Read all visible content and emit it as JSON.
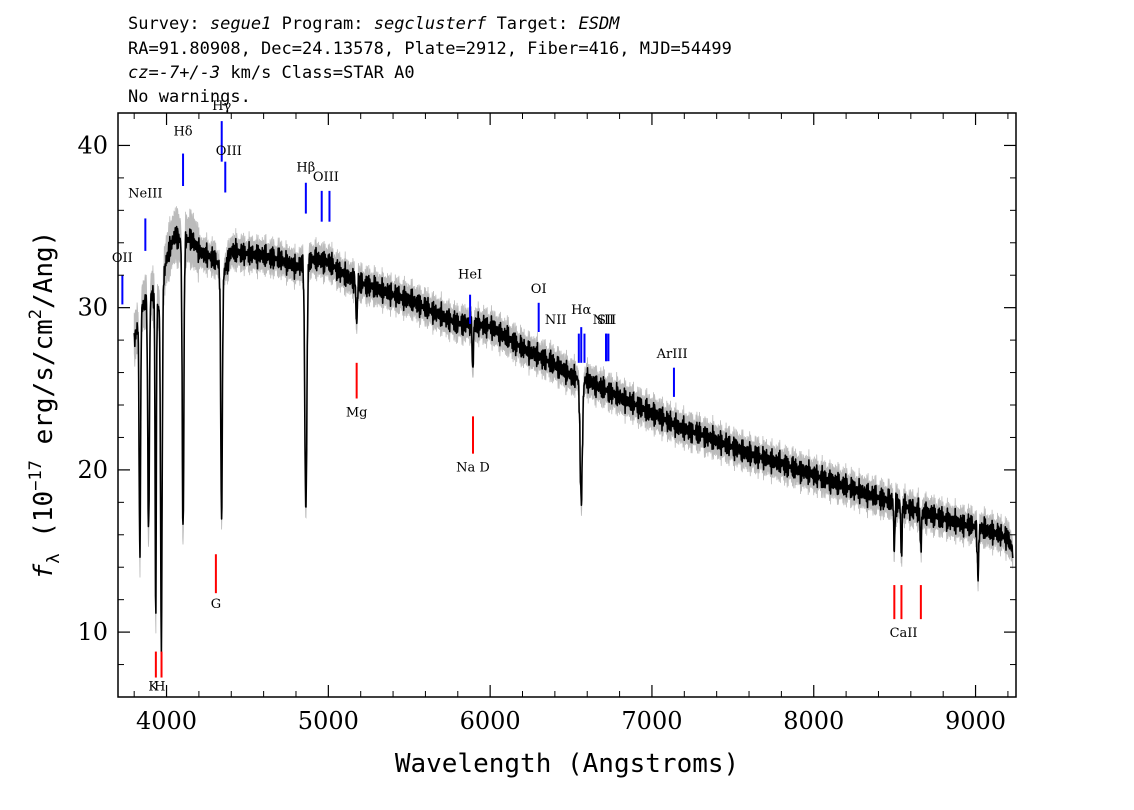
{
  "header": {
    "survey_label": "Survey:",
    "survey": "segue1",
    "program_label": "Program:",
    "program": "segclusterf",
    "target_label": "Target:",
    "target": "ESDM",
    "line2": "RA=91.80908, Dec=24.13578, Plate=2912, Fiber=416, MJD=54499",
    "cz_label": "cz",
    "cz_value": "=-7+/-3",
    "cz_rest": " km/s Class=STAR A0",
    "line4": "No warnings."
  },
  "chart_data": {
    "type": "line",
    "title": "",
    "xlabel": "Wavelength (Angstroms)",
    "ylabel_parts": {
      "f": "f",
      "sub": "λ",
      "pre": " (10",
      "exp": "−17",
      "mid": " erg/s/cm",
      "exp2": "2",
      "post": "/Ang)"
    },
    "xlim": [
      3700,
      9250
    ],
    "ylim": [
      6,
      42
    ],
    "xticks": [
      4000,
      5000,
      6000,
      7000,
      8000,
      9000
    ],
    "yticks": [
      10,
      20,
      30,
      40
    ],
    "colors": {
      "spectrum": "#000000",
      "error": "#bbbbbb",
      "emission": "#0000ff",
      "absorption": "#ff0000"
    },
    "spectrum_continuum": [
      [
        3800,
        28
      ],
      [
        3850,
        30
      ],
      [
        3900,
        31
      ],
      [
        3950,
        30
      ],
      [
        4000,
        33
      ],
      [
        4050,
        34.5
      ],
      [
        4100,
        34
      ],
      [
        4150,
        34.3
      ],
      [
        4200,
        33.5
      ],
      [
        4250,
        33.2
      ],
      [
        4300,
        33
      ],
      [
        4350,
        32
      ],
      [
        4400,
        33.5
      ],
      [
        4500,
        33.3
      ],
      [
        4600,
        33.2
      ],
      [
        4700,
        33
      ],
      [
        4800,
        32.5
      ],
      [
        4900,
        33
      ],
      [
        5000,
        32.8
      ],
      [
        5100,
        32
      ],
      [
        5200,
        31.5
      ],
      [
        5300,
        31.2
      ],
      [
        5400,
        30.8
      ],
      [
        5500,
        30.5
      ],
      [
        5600,
        30
      ],
      [
        5700,
        29.5
      ],
      [
        5800,
        29
      ],
      [
        5900,
        29
      ],
      [
        6000,
        28.8
      ],
      [
        6100,
        28.2
      ],
      [
        6200,
        27.5
      ],
      [
        6300,
        27
      ],
      [
        6400,
        26.5
      ],
      [
        6500,
        25.8
      ],
      [
        6600,
        25.5
      ],
      [
        6700,
        25
      ],
      [
        6800,
        24.5
      ],
      [
        6900,
        24
      ],
      [
        7000,
        23.5
      ],
      [
        7100,
        23
      ],
      [
        7200,
        22.5
      ],
      [
        7300,
        22.2
      ],
      [
        7400,
        21.8
      ],
      [
        7500,
        21.4
      ],
      [
        7600,
        21
      ],
      [
        7700,
        20.7
      ],
      [
        7800,
        20.4
      ],
      [
        7900,
        20
      ],
      [
        8000,
        19.7
      ],
      [
        8100,
        19.3
      ],
      [
        8200,
        19
      ],
      [
        8300,
        18.6
      ],
      [
        8400,
        18.3
      ],
      [
        8500,
        18
      ],
      [
        8600,
        17.6
      ],
      [
        8700,
        17.3
      ],
      [
        8800,
        17
      ],
      [
        8900,
        16.7
      ],
      [
        9000,
        16.5
      ],
      [
        9100,
        16.2
      ],
      [
        9200,
        15.8
      ],
      [
        9230,
        15
      ]
    ],
    "absorption_features": [
      [
        3835,
        14.5,
        6
      ],
      [
        3889,
        16,
        7
      ],
      [
        3933,
        11,
        5
      ],
      [
        3968,
        9.5,
        7
      ],
      [
        4102,
        16,
        7
      ],
      [
        4340,
        17,
        7
      ],
      [
        4861,
        17.5,
        9
      ],
      [
        5175,
        29,
        6
      ],
      [
        5893,
        26,
        5
      ],
      [
        6563,
        18,
        10
      ],
      [
        8498,
        15,
        5
      ],
      [
        8542,
        14.5,
        5
      ],
      [
        8662,
        15,
        5
      ],
      [
        9015,
        13.5,
        6
      ]
    ],
    "emission_lines": [
      {
        "name": "OII",
        "wl": 3727,
        "ymin": 30.2,
        "ymax": 32.0,
        "lx": 3727,
        "ly": 32.8
      },
      {
        "name": "NeIII",
        "wl": 3869,
        "ymin": 33.5,
        "ymax": 35.5,
        "lx": 3869,
        "ly": 36.8
      },
      {
        "name": "Hδ",
        "wl": 4102,
        "ymin": 37.5,
        "ymax": 39.5,
        "lx": 4102,
        "ly": 40.6
      },
      {
        "name": "Hγ",
        "wl": 4341,
        "ymin": 39.0,
        "ymax": 41.5,
        "lx": 4341,
        "ly": 42.2
      },
      {
        "name": "OIII",
        "wl": 4363,
        "ymin": 37.1,
        "ymax": 39.0,
        "lx": 4385,
        "ly": 39.4
      },
      {
        "name": "Hβ",
        "wl": 4861,
        "ymin": 35.8,
        "ymax": 37.7,
        "lx": 4861,
        "ly": 38.4
      },
      {
        "name": "OIII",
        "wl": 4959,
        "ymin": 35.3,
        "ymax": 37.2,
        "lx": 4985,
        "ly": 37.8
      },
      {
        "name": "OIII",
        "wl": 5007,
        "ymin": 35.3,
        "ymax": 37.2,
        "lx": "",
        "ly": ""
      },
      {
        "name": "HeI",
        "wl": 5876,
        "ymin": 29.0,
        "ymax": 30.8,
        "lx": 5876,
        "ly": 31.8
      },
      {
        "name": "OI",
        "wl": 6300,
        "ymin": 28.5,
        "ymax": 30.3,
        "lx": 6300,
        "ly": 30.9
      },
      {
        "name": "NII",
        "wl": 6548,
        "ymin": 26.6,
        "ymax": 28.4,
        "lx": 6405,
        "ly": 29.0
      },
      {
        "name": "Hα",
        "wl": 6563,
        "ymin": 26.6,
        "ymax": 28.8,
        "lx": 6563,
        "ly": 29.6
      },
      {
        "name": "NII",
        "wl": 6583,
        "ymin": 26.6,
        "ymax": 28.4,
        "lx": "",
        "ly": ""
      },
      {
        "name": "SII",
        "wl": 6716,
        "ymin": 26.7,
        "ymax": 28.4,
        "lx": 6720,
        "ly": 29.0
      },
      {
        "name": "SII",
        "wl": 6731,
        "ymin": 26.7,
        "ymax": 28.4,
        "lx": "",
        "ly": ""
      },
      {
        "name": "NII",
        "wl": 6718,
        "ymin": 26.7,
        "ymax": 28.4,
        "lx": 6700,
        "ly": 29.0
      },
      {
        "name": "ArIII",
        "wl": 7136,
        "ymin": 24.5,
        "ymax": 26.3,
        "lx": 7125,
        "ly": 26.9
      }
    ],
    "absorption_lines": [
      {
        "name": "K",
        "wl": 3934,
        "ymin": 7.2,
        "ymax": 8.8,
        "lx": 3918,
        "ly": 6.4
      },
      {
        "name": "H",
        "wl": 3969,
        "ymin": 7.2,
        "ymax": 8.8,
        "lx": 3958,
        "ly": 6.4
      },
      {
        "name": "G",
        "wl": 4305,
        "ymin": 12.4,
        "ymax": 14.8,
        "lx": 4305,
        "ly": 11.5
      },
      {
        "name": "Mg",
        "wl": 5175,
        "ymin": 24.4,
        "ymax": 26.6,
        "lx": 5175,
        "ly": 23.3
      },
      {
        "name": "Na D",
        "wl": 5894,
        "ymin": 21.0,
        "ymax": 23.3,
        "lx": 5894,
        "ly": 19.9
      },
      {
        "name": "CaII",
        "wl": 8498,
        "ymin": 10.8,
        "ymax": 12.9,
        "lx": 8555,
        "ly": 9.7
      },
      {
        "name": "",
        "wl": 8542,
        "ymin": 10.8,
        "ymax": 12.9,
        "lx": "",
        "ly": ""
      },
      {
        "name": "",
        "wl": 8662,
        "ymin": 10.8,
        "ymax": 12.9,
        "lx": "",
        "ly": ""
      }
    ]
  }
}
